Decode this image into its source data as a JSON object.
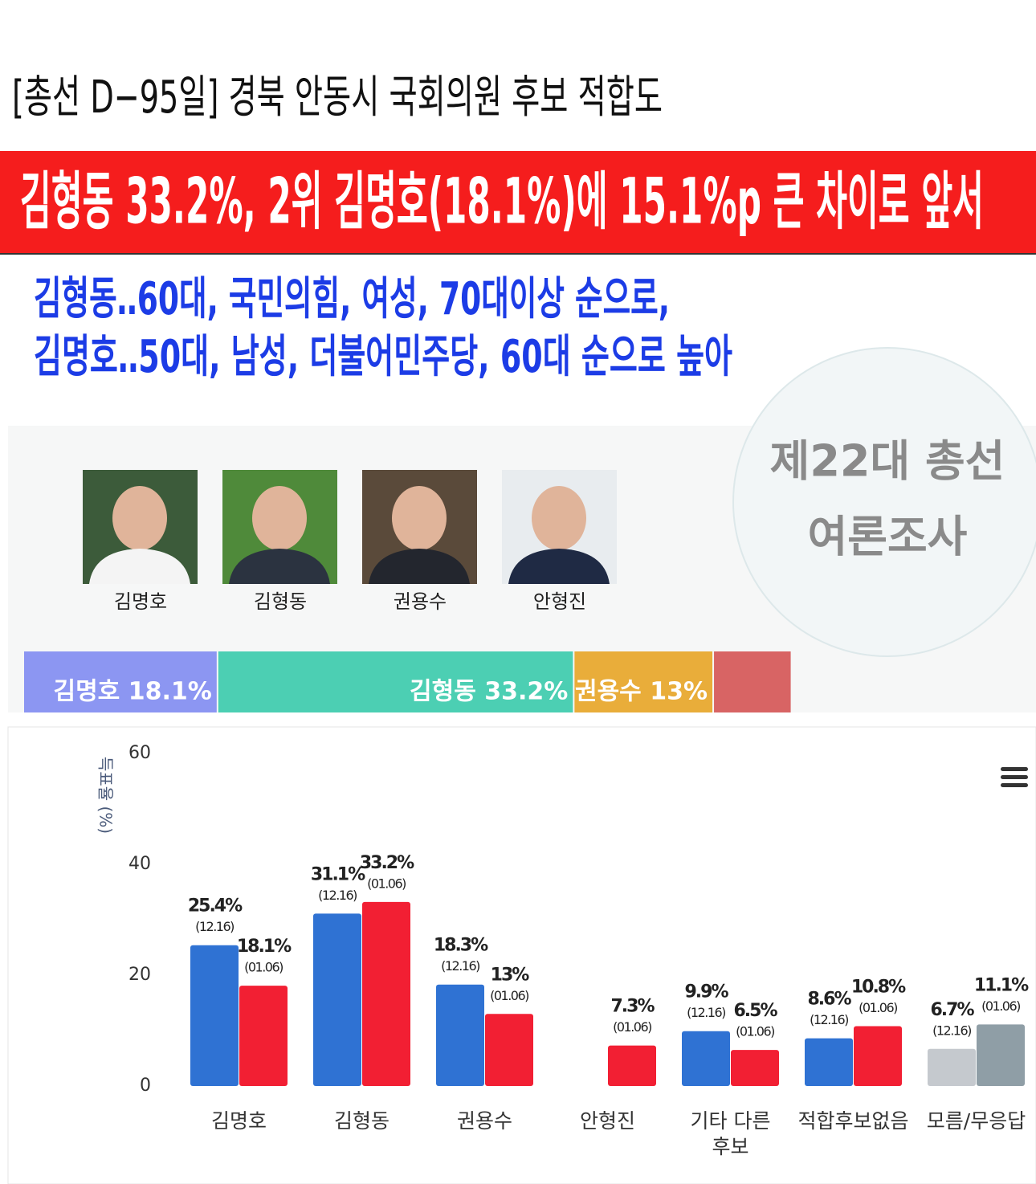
{
  "header": {
    "title": "[총선 D−95일] 경북 안동시 국회의원 후보 적합도",
    "headline": "김형동 33.2%, 2위 김명호(18.1%)에 15.1%p 큰 차이로 앞서",
    "subtitles": [
      "김형동‥60대, 국민의힘, 여성, 70대이상 순으로,",
      "김명호‥50대, 남성, 더불어민주당, 60대 순으로 높아"
    ]
  },
  "candidates": [
    "김명호",
    "김형동",
    "권용수",
    "안형진"
  ],
  "badge": [
    "제22대 총선",
    "여론조사"
  ],
  "chart_data": [
    {
      "type": "stacked_bar",
      "values": [
        18.1,
        33.2,
        13,
        7.3
      ],
      "value_labels": [
        "김명호 18.1%",
        "김형동 33.2%",
        "권용수 13%",
        null
      ],
      "colors": [
        "#8c96f2",
        "#4ccfb3",
        "#e9ad3a",
        "#d86464"
      ]
    },
    {
      "type": "bar",
      "y_label": "득표율 (%)",
      "categories": [
        "김명호",
        "김형동",
        "권용수",
        "안형진",
        "기타 다른 후보",
        "적합후보없음",
        "모름/무응답"
      ],
      "series": [
        {
          "name": "(12.16)",
          "values": [
            25.4,
            31.1,
            18.3,
            null,
            9.9,
            8.6,
            6.7
          ],
          "value_labels": [
            "25.4%",
            "31.1%",
            "18.3%",
            null,
            "9.9%",
            "8.6%",
            "6.7%"
          ],
          "colors": [
            "#2f72d3",
            "#2f72d3",
            "#2f72d3",
            "#2f72d3",
            "#2f72d3",
            "#2f72d3",
            "#c5c9ce"
          ]
        },
        {
          "name": "(01.06)",
          "values": [
            18.1,
            33.2,
            13,
            7.3,
            6.5,
            10.8,
            11.1
          ],
          "value_labels": [
            "18.1%",
            "33.2%",
            "13%",
            "7.3%",
            "6.5%",
            "10.8%",
            "11.1%"
          ],
          "colors": [
            "#f21f33",
            "#f21f33",
            "#f21f33",
            "#f21f33",
            "#f21f33",
            "#f21f33",
            "#8f9ea6"
          ]
        }
      ],
      "ylim": [
        0,
        60
      ],
      "yticks": [
        0,
        20,
        40,
        60
      ],
      "grid": false
    }
  ]
}
